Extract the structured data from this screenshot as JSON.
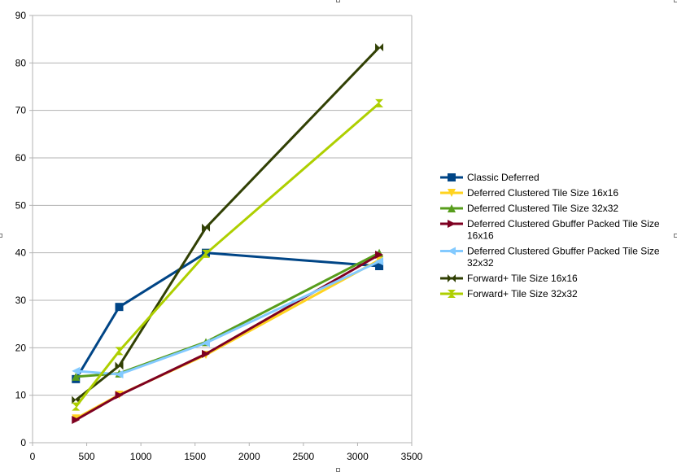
{
  "chart_data": {
    "type": "line",
    "title": "",
    "xlabel": "",
    "ylabel": "",
    "xlim": [
      0,
      3500
    ],
    "ylim": [
      0,
      90
    ],
    "x_ticks": [
      0,
      500,
      1000,
      1500,
      2000,
      2500,
      3000,
      3500
    ],
    "y_ticks": [
      0,
      10,
      20,
      30,
      40,
      50,
      60,
      70,
      80,
      90
    ],
    "grid": "horizontal",
    "legend_position": "right",
    "series": [
      {
        "name": "Classic Deferred",
        "color": "#004586",
        "marker": "square",
        "x": [
          400,
          800,
          1600,
          3200
        ],
        "y": [
          13.4,
          28.6,
          40.0,
          37.2
        ]
      },
      {
        "name": "Deferred Clustered Tile Size 16x16",
        "color": "#ffd320",
        "marker": "triangle-down",
        "x": [
          400,
          800,
          1600,
          3200
        ],
        "y": [
          5.1,
          10.1,
          18.5,
          38.5
        ]
      },
      {
        "name": "Deferred Clustered Tile Size 32x32",
        "color": "#579d1c",
        "marker": "triangle-up",
        "x": [
          400,
          800,
          1600,
          3200
        ],
        "y": [
          13.9,
          14.6,
          21.2,
          40.0
        ]
      },
      {
        "name": "Deferred Clustered Gbuffer Packed Tile Size 16x16",
        "color": "#7e0021",
        "marker": "triangle-right",
        "x": [
          400,
          800,
          1600,
          3200
        ],
        "y": [
          4.8,
          10.0,
          18.7,
          39.6
        ]
      },
      {
        "name": "Deferred Clustered Gbuffer Packed Tile Size 32x32",
        "color": "#83caff",
        "marker": "triangle-left",
        "x": [
          400,
          800,
          1600,
          3200
        ],
        "y": [
          15.1,
          14.4,
          21.0,
          38.2
        ]
      },
      {
        "name": "Forward+  Tile Size 16x16",
        "color": "#314004",
        "marker": "bowtie",
        "x": [
          400,
          800,
          1600,
          3200
        ],
        "y": [
          9.0,
          16.2,
          45.3,
          83.3
        ]
      },
      {
        "name": "Forward+  Tile Size 32x32",
        "color": "#aecf00",
        "marker": "hourglass",
        "x": [
          400,
          800,
          1600,
          3200
        ],
        "y": [
          7.6,
          19.3,
          39.8,
          71.5
        ]
      }
    ]
  }
}
